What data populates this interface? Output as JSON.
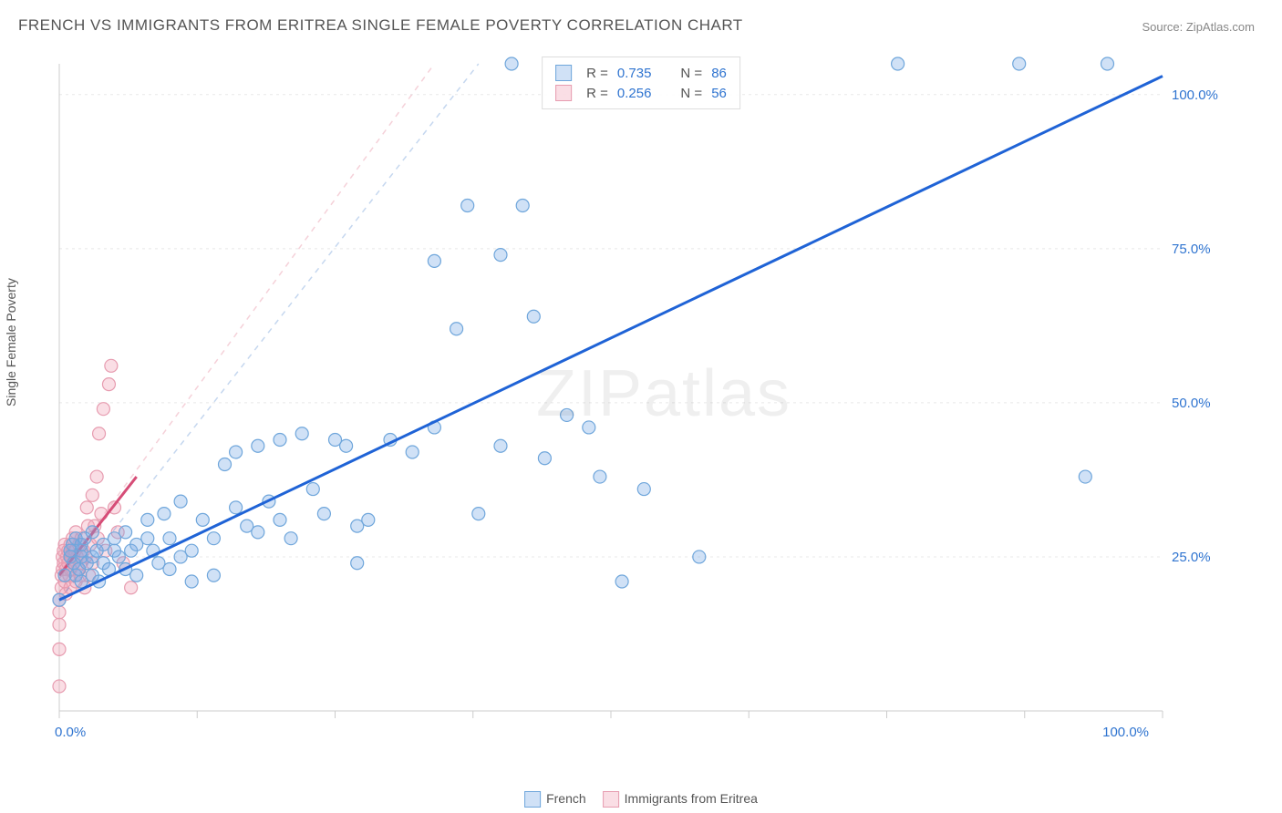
{
  "title": "FRENCH VS IMMIGRANTS FROM ERITREA SINGLE FEMALE POVERTY CORRELATION CHART",
  "source_label": "Source: ",
  "source_name": "ZipAtlas.com",
  "ylabel": "Single Female Poverty",
  "watermark": "ZIPatlas",
  "chart": {
    "type": "scatter",
    "xlim": [
      0,
      100
    ],
    "ylim": [
      0,
      105
    ],
    "xtick_positions": [
      0,
      12.5,
      25,
      37.5,
      50,
      62.5,
      75,
      87.5,
      100
    ],
    "xtick_labels": {
      "0": "0.0%",
      "100": "100.0%"
    },
    "ytick_positions": [
      25,
      50,
      75,
      100
    ],
    "ytick_labels": {
      "25": "25.0%",
      "50": "50.0%",
      "75": "75.0%",
      "100": "100.0%"
    },
    "background_color": "#ffffff",
    "grid_color": "#e8e8e8",
    "axis_color": "#cccccc",
    "tick_label_color": "#2f74d0",
    "series": [
      {
        "name": "French",
        "fill": "rgba(120,170,230,0.35)",
        "stroke": "#6fa6db",
        "marker_r": 7,
        "R": 0.735,
        "N": 86,
        "trend": {
          "x1": 0,
          "y1": 18,
          "x2": 100,
          "y2": 103,
          "color": "#1f63d6",
          "width": 3
        },
        "trend_dash": {
          "x1": 0,
          "y1": 18,
          "x2": 38,
          "y2": 105,
          "color": "rgba(90,140,210,0.35)"
        },
        "points": [
          [
            0,
            18
          ],
          [
            0.5,
            22
          ],
          [
            1,
            25
          ],
          [
            1,
            26
          ],
          [
            1.2,
            27
          ],
          [
            1.3,
            24
          ],
          [
            1.5,
            22
          ],
          [
            1.5,
            28
          ],
          [
            1.8,
            23
          ],
          [
            2,
            21
          ],
          [
            2,
            26
          ],
          [
            2,
            27
          ],
          [
            2,
            25
          ],
          [
            2.3,
            28
          ],
          [
            2.5,
            24
          ],
          [
            3,
            29
          ],
          [
            3,
            25
          ],
          [
            3,
            22
          ],
          [
            3.4,
            26
          ],
          [
            3.6,
            21
          ],
          [
            4,
            27
          ],
          [
            4,
            24
          ],
          [
            4.5,
            23
          ],
          [
            5,
            28
          ],
          [
            5,
            26
          ],
          [
            5.4,
            25
          ],
          [
            6,
            23
          ],
          [
            6,
            29
          ],
          [
            6.5,
            26
          ],
          [
            7,
            22
          ],
          [
            7,
            27
          ],
          [
            8,
            31
          ],
          [
            8,
            28
          ],
          [
            8.5,
            26
          ],
          [
            9,
            24
          ],
          [
            9.5,
            32
          ],
          [
            10,
            28
          ],
          [
            10,
            23
          ],
          [
            11,
            34
          ],
          [
            11,
            25
          ],
          [
            12,
            21
          ],
          [
            12,
            26
          ],
          [
            13,
            31
          ],
          [
            14,
            22
          ],
          [
            14,
            28
          ],
          [
            15,
            40
          ],
          [
            16,
            42
          ],
          [
            16,
            33
          ],
          [
            17,
            30
          ],
          [
            18,
            29
          ],
          [
            18,
            43
          ],
          [
            19,
            34
          ],
          [
            20,
            44
          ],
          [
            20,
            31
          ],
          [
            21,
            28
          ],
          [
            22,
            45
          ],
          [
            23,
            36
          ],
          [
            24,
            32
          ],
          [
            25,
            44
          ],
          [
            26,
            43
          ],
          [
            27,
            30
          ],
          [
            27,
            24
          ],
          [
            28,
            31
          ],
          [
            30,
            44
          ],
          [
            32,
            42
          ],
          [
            34,
            46
          ],
          [
            34,
            73
          ],
          [
            36,
            62
          ],
          [
            37,
            82
          ],
          [
            38,
            32
          ],
          [
            40,
            43
          ],
          [
            40,
            74
          ],
          [
            41,
            105
          ],
          [
            42,
            82
          ],
          [
            43,
            64
          ],
          [
            44,
            41
          ],
          [
            46,
            48
          ],
          [
            48,
            46
          ],
          [
            49,
            38
          ],
          [
            51,
            21
          ],
          [
            53,
            36
          ],
          [
            58,
            25
          ],
          [
            76,
            105
          ],
          [
            87,
            105
          ],
          [
            93,
            38
          ],
          [
            95,
            105
          ]
        ]
      },
      {
        "name": "Immigrants from Eritrea",
        "fill": "rgba(240,160,180,0.35)",
        "stroke": "#e79cb0",
        "marker_r": 7,
        "R": 0.256,
        "N": 56,
        "trend": {
          "x1": 0,
          "y1": 22,
          "x2": 7,
          "y2": 38,
          "color": "#d64d77",
          "width": 3
        },
        "trend_dash": {
          "x1": 0,
          "y1": 22,
          "x2": 34,
          "y2": 105,
          "color": "rgba(230,140,160,0.4)"
        },
        "points": [
          [
            0,
            4
          ],
          [
            0,
            10
          ],
          [
            0,
            14
          ],
          [
            0,
            16
          ],
          [
            0,
            18
          ],
          [
            0.2,
            20
          ],
          [
            0.2,
            22
          ],
          [
            0.3,
            23
          ],
          [
            0.3,
            25
          ],
          [
            0.4,
            24
          ],
          [
            0.4,
            26
          ],
          [
            0.5,
            27
          ],
          [
            0.5,
            21
          ],
          [
            0.6,
            23
          ],
          [
            0.6,
            19
          ],
          [
            0.7,
            25
          ],
          [
            0.8,
            26
          ],
          [
            0.8,
            24
          ],
          [
            0.9,
            22
          ],
          [
            1,
            27
          ],
          [
            1,
            23
          ],
          [
            1,
            20
          ],
          [
            1.1,
            25
          ],
          [
            1.2,
            28
          ],
          [
            1.3,
            24
          ],
          [
            1.4,
            26
          ],
          [
            1.5,
            21
          ],
          [
            1.5,
            29
          ],
          [
            1.6,
            25
          ],
          [
            1.7,
            23
          ],
          [
            1.8,
            27
          ],
          [
            1.9,
            22
          ],
          [
            2,
            28
          ],
          [
            2,
            24
          ],
          [
            2.2,
            26
          ],
          [
            2.3,
            20
          ],
          [
            2.4,
            25
          ],
          [
            2.5,
            33
          ],
          [
            2.6,
            30
          ],
          [
            2.7,
            22
          ],
          [
            2.8,
            27
          ],
          [
            3,
            35
          ],
          [
            3,
            24
          ],
          [
            3.2,
            30
          ],
          [
            3.4,
            38
          ],
          [
            3.5,
            28
          ],
          [
            3.6,
            45
          ],
          [
            3.8,
            32
          ],
          [
            4,
            49
          ],
          [
            4.2,
            26
          ],
          [
            4.5,
            53
          ],
          [
            4.7,
            56
          ],
          [
            5,
            33
          ],
          [
            5.3,
            29
          ],
          [
            5.8,
            24
          ],
          [
            6.5,
            20
          ]
        ]
      }
    ]
  },
  "legend": {
    "r_label": "R =",
    "n_label": "N ="
  }
}
